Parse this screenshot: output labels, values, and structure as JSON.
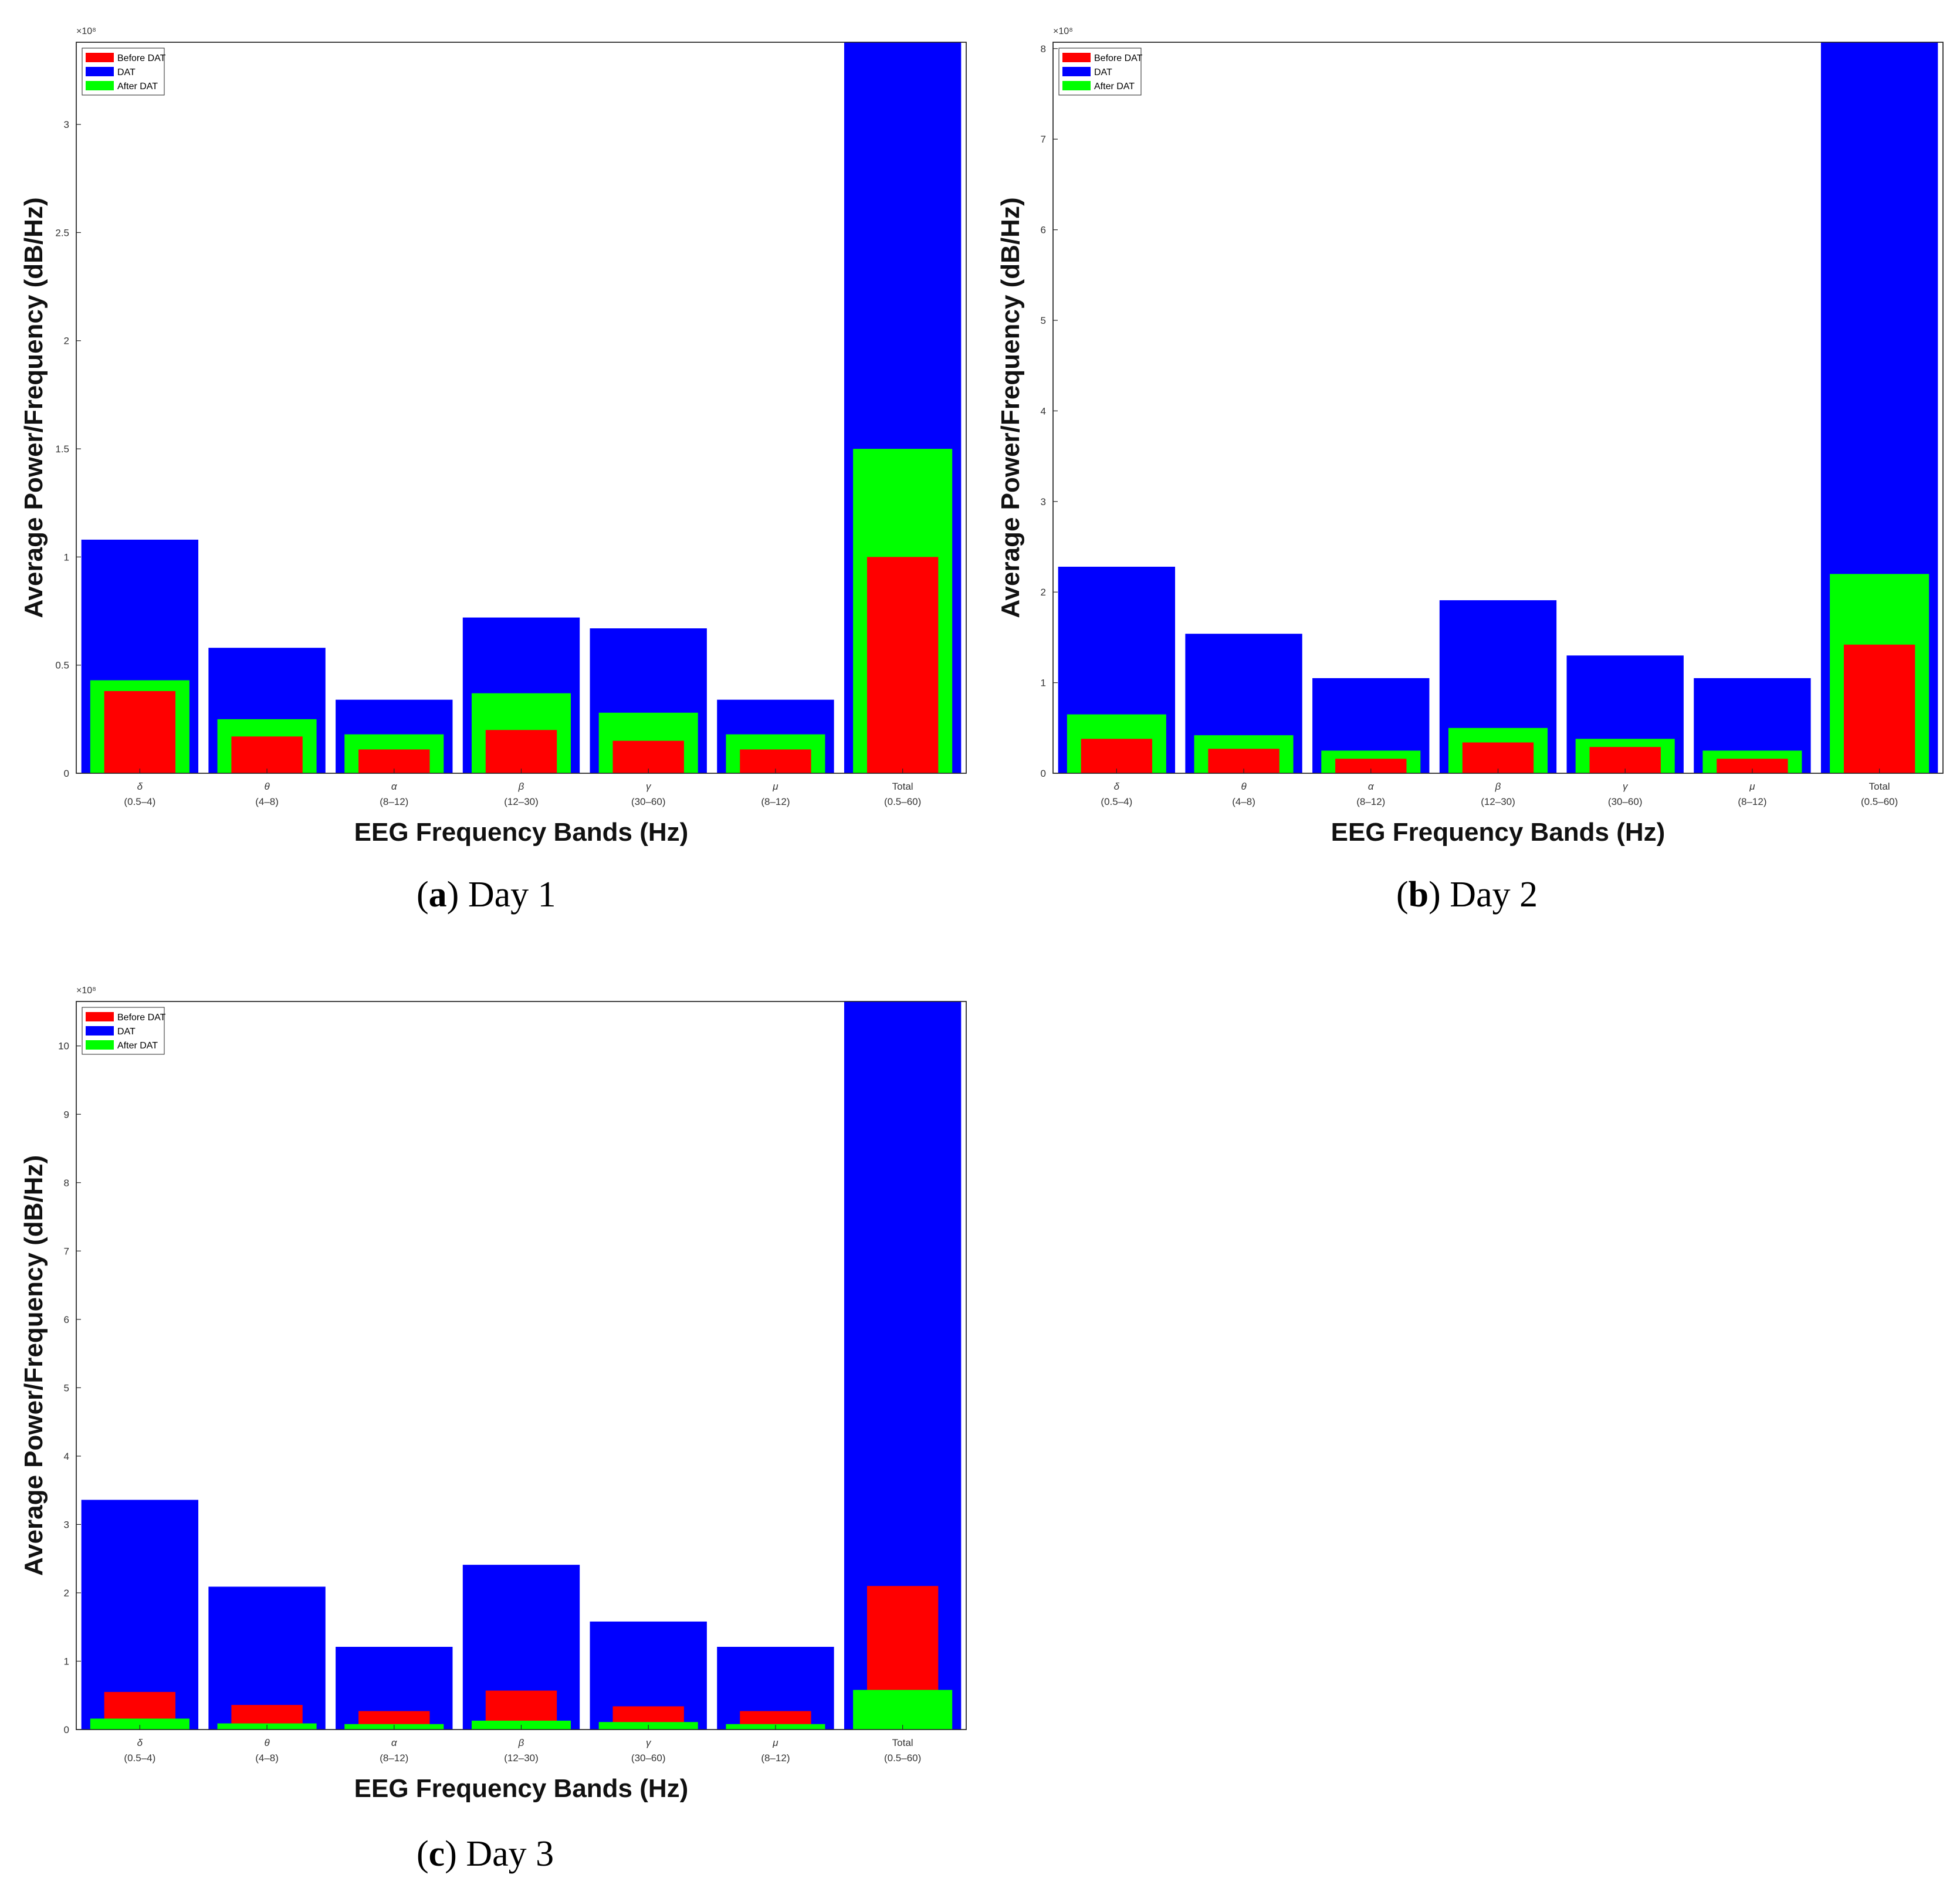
{
  "colors": {
    "before": "#ff0000",
    "dat": "#0000ff",
    "after": "#00ff00"
  },
  "captions": [
    {
      "letter": "a",
      "text": "Day 1"
    },
    {
      "letter": "b",
      "text": "Day 2"
    },
    {
      "letter": "c",
      "text": "Day 3"
    }
  ],
  "chart_data": [
    {
      "type": "bar",
      "caption": "(a) Day 1",
      "xlabel": "EEG Frequency Bands (Hz)",
      "ylabel": "Average Power/Frequency (dB/Hz)",
      "y_exponent": "×10⁸",
      "ylim": [
        0,
        3.38
      ],
      "yticks": [
        "0",
        "0.5",
        "1",
        "1.5",
        "2",
        "2.5",
        "3"
      ],
      "categories": [
        "δ",
        "θ",
        "α",
        "β",
        "γ",
        "μ",
        "Total"
      ],
      "category_ranges": [
        "(0.5–4)",
        "(4–8)",
        "(8–12)",
        "(12–30)",
        "(30–60)",
        "(8–12)",
        "(0.5–60)"
      ],
      "legend": [
        "Before DAT",
        "DAT",
        "After DAT"
      ],
      "legend_position": "top-left",
      "series": [
        {
          "name": "Before DAT",
          "values": [
            0.38,
            0.17,
            0.11,
            0.2,
            0.15,
            0.11,
            1.0
          ]
        },
        {
          "name": "DAT",
          "values": [
            1.08,
            0.58,
            0.34,
            0.72,
            0.67,
            0.34,
            3.38
          ]
        },
        {
          "name": "After DAT",
          "values": [
            0.43,
            0.25,
            0.18,
            0.37,
            0.28,
            0.18,
            1.5
          ]
        }
      ]
    },
    {
      "type": "bar",
      "caption": "(b) Day 2",
      "xlabel": "EEG Frequency Bands (Hz)",
      "ylabel": "Average Power/Frequency (dB/Hz)",
      "y_exponent": "×10⁸",
      "ylim": [
        0,
        8.07
      ],
      "yticks": [
        "0",
        "1",
        "2",
        "3",
        "4",
        "5",
        "6",
        "7",
        "8"
      ],
      "categories": [
        "δ",
        "θ",
        "α",
        "β",
        "γ",
        "μ",
        "Total"
      ],
      "category_ranges": [
        "(0.5–4)",
        "(4–8)",
        "(8–12)",
        "(12–30)",
        "(30–60)",
        "(8–12)",
        "(0.5–60)"
      ],
      "legend": [
        "Before DAT",
        "DAT",
        "After DAT"
      ],
      "legend_position": "top-left",
      "series": [
        {
          "name": "Before DAT",
          "values": [
            0.38,
            0.27,
            0.16,
            0.34,
            0.29,
            0.16,
            1.42
          ]
        },
        {
          "name": "DAT",
          "values": [
            2.28,
            1.54,
            1.05,
            1.91,
            1.3,
            1.05,
            8.07
          ]
        },
        {
          "name": "After DAT",
          "values": [
            0.65,
            0.42,
            0.25,
            0.5,
            0.38,
            0.25,
            2.2
          ]
        }
      ]
    },
    {
      "type": "bar",
      "caption": "(c) Day 3",
      "xlabel": "EEG Frequency Bands (Hz)",
      "ylabel": "Average Power/Frequency (dB/Hz)",
      "y_exponent": "×10⁸",
      "ylim": [
        0,
        10.65
      ],
      "yticks": [
        "0",
        "1",
        "2",
        "3",
        "4",
        "5",
        "6",
        "7",
        "8",
        "9",
        "10"
      ],
      "categories": [
        "δ",
        "θ",
        "α",
        "β",
        "γ",
        "μ",
        "Total"
      ],
      "category_ranges": [
        "(0.5–4)",
        "(4–8)",
        "(8–12)",
        "(12–30)",
        "(30–60)",
        "(8–12)",
        "(0.5–60)"
      ],
      "legend": [
        "Before DAT",
        "DAT",
        "After DAT"
      ],
      "legend_position": "top-left",
      "series": [
        {
          "name": "Before DAT",
          "values": [
            0.55,
            0.36,
            0.27,
            0.57,
            0.34,
            0.27,
            2.1
          ]
        },
        {
          "name": "DAT",
          "values": [
            3.36,
            2.09,
            1.21,
            2.41,
            1.58,
            1.21,
            10.65
          ]
        },
        {
          "name": "After DAT",
          "values": [
            0.16,
            0.09,
            0.08,
            0.13,
            0.11,
            0.08,
            0.58
          ]
        }
      ]
    }
  ]
}
